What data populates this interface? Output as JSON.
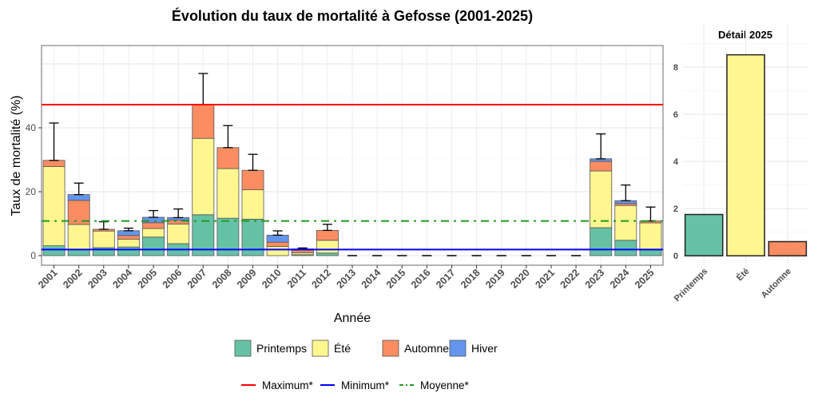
{
  "chart_data": [
    {
      "type": "bar",
      "stacked": true,
      "title": "Évolution du taux de mortalité à Gefosse (2001-2025)",
      "xlabel": "Année",
      "ylabel": "Taux de mortalité (%)",
      "ylim": [
        -3,
        65.75
      ],
      "yticks": [
        "0",
        "20",
        "40"
      ],
      "ytick_values": [
        0,
        20,
        40
      ],
      "grid": true,
      "categories": [
        "2001",
        "2002",
        "2003",
        "2004",
        "2005",
        "2006",
        "2007",
        "2008",
        "2009",
        "2010",
        "2011",
        "2012",
        "2013",
        "2014",
        "2015",
        "2016",
        "2017",
        "2018",
        "2019",
        "2020",
        "2021",
        "2022",
        "2023",
        "2024",
        "2025"
      ],
      "series": [
        {
          "name": "Printemps",
          "color": "#66c2a5",
          "values": [
            3.1,
            2.0,
            2.5,
            2.7,
            5.8,
            3.75,
            12.8,
            11.7,
            11.4,
            0,
            0.3,
            0.8,
            0,
            0,
            0,
            0,
            0,
            0,
            0,
            0,
            0,
            0,
            8.75,
            4.8,
            1.75
          ]
        },
        {
          "name": "Été",
          "color": "#fff68f",
          "values": [
            24.8,
            7.75,
            5.2,
            2.4,
            2.7,
            6.15,
            23.9,
            15.55,
            9.2,
            2.9,
            0.6,
            4.0,
            0,
            0,
            0,
            0,
            0,
            0,
            0,
            0,
            0,
            0,
            17.75,
            10.9,
            8.5
          ]
        },
        {
          "name": "Automne",
          "color": "#fc8d62",
          "values": [
            1.9,
            7.55,
            0.55,
            1.2,
            1.8,
            1.2,
            10.55,
            6.55,
            6.1,
            1.3,
            0.8,
            3.1,
            0,
            0,
            0,
            0,
            0,
            0,
            0,
            0,
            0,
            0,
            3.0,
            0.6,
            0.6
          ]
        },
        {
          "name": "Hiver",
          "color": "#6495ed",
          "values": [
            0,
            1.8,
            0,
            1.5,
            1.7,
            0.8,
            0,
            0,
            0,
            2.2,
            0.4,
            0,
            0,
            0,
            0,
            0,
            0,
            0,
            0,
            0,
            0,
            0,
            0.8,
            0.9,
            0
          ]
        }
      ],
      "error_upper": [
        41.5,
        22.7,
        10.6,
        8.6,
        14.1,
        14.6,
        57,
        40.7,
        31.7,
        7.75,
        2.4,
        9.8,
        0,
        0,
        0,
        0,
        0,
        0,
        0,
        0,
        0,
        0,
        38.1,
        22.1,
        15.2
      ],
      "reference_lines": [
        {
          "name": "Maximum*",
          "value": 47.25,
          "color": "#ff0000",
          "style": "solid"
        },
        {
          "name": "Minimum*",
          "value": 1.9,
          "color": "#0000ff",
          "style": "solid"
        },
        {
          "name": "Moyenne*",
          "value": 10.85,
          "color": "#229922",
          "style": "dotdash"
        }
      ],
      "legend_position": "bottom"
    },
    {
      "type": "bar",
      "title": "Détail 2025",
      "categories": [
        "Printemps",
        "Été",
        "Automne"
      ],
      "values": [
        1.75,
        8.52,
        0.6
      ],
      "colors": [
        "#66c2a5",
        "#fff68f",
        "#fc8d62"
      ],
      "ylim": [
        -0.4,
        9.15
      ],
      "yticks": [
        "0",
        "2",
        "4",
        "6",
        "8"
      ],
      "ytick_values": [
        0,
        2,
        4,
        6,
        8
      ],
      "grid": true,
      "ylabel_position": "left"
    }
  ]
}
